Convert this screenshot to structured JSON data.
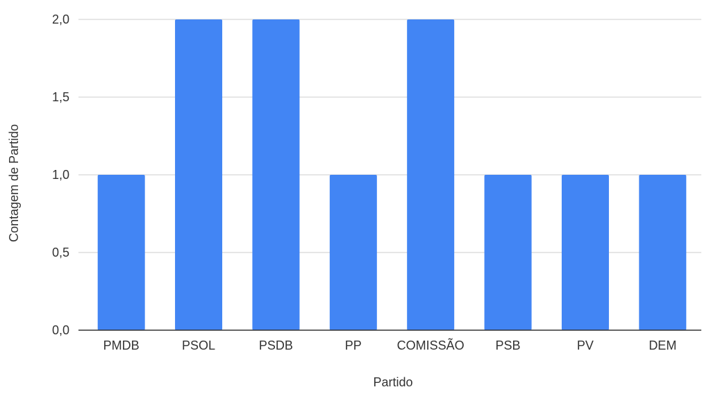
{
  "chart_data": {
    "type": "bar",
    "categories": [
      "PMDB",
      "PSOL",
      "PSDB",
      "PP",
      "COMISSÃO",
      "PSB",
      "PV",
      "DEM"
    ],
    "values": [
      1,
      2,
      2,
      1,
      2,
      1,
      1,
      1
    ],
    "yticks": [
      "0,0",
      "0,5",
      "1,0",
      "1,5",
      "2,0"
    ],
    "ylim": [
      0,
      2
    ],
    "xlabel": "Partido",
    "ylabel": "Contagem de Partido",
    "grid": true,
    "legend": "none",
    "colors": {
      "bar": "#4285f4",
      "grid": "#cccccc",
      "axis": "#333333"
    }
  }
}
